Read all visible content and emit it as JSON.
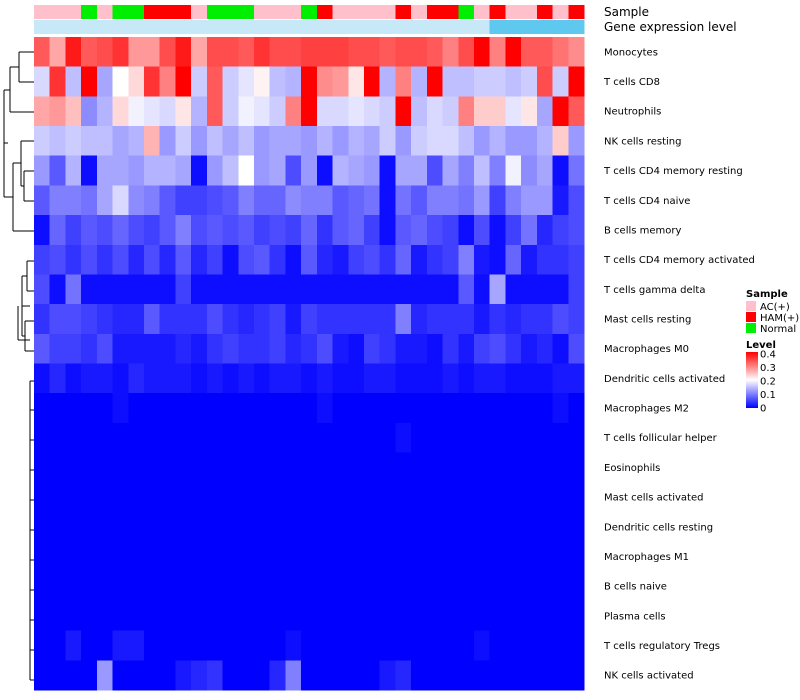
{
  "chart_data": {
    "type": "heatmap",
    "annotation_tracks": [
      {
        "name": "Sample",
        "values": [
          "AC(+)",
          "AC(+)",
          "AC(+)",
          "Normal",
          "AC(+)",
          "Normal",
          "Normal",
          "HAM(+)",
          "HAM(+)",
          "HAM(+)",
          "AC(+)",
          "Normal",
          "Normal",
          "Normal",
          "AC(+)",
          "AC(+)",
          "AC(+)",
          "Normal",
          "HAM(+)",
          "AC(+)",
          "AC(+)",
          "AC(+)",
          "AC(+)",
          "HAM(+)",
          "AC(+)",
          "HAM(+)",
          "HAM(+)",
          "Normal",
          "AC(+)",
          "HAM(+)",
          "AC(+)",
          "AC(+)",
          "HAM(+)",
          "AC(+)",
          "HAM(+)"
        ]
      },
      {
        "name": "Gene expression level",
        "values": [
          "low",
          "low",
          "low",
          "low",
          "low",
          "low",
          "low",
          "low",
          "low",
          "low",
          "low",
          "low",
          "low",
          "low",
          "low",
          "low",
          "low",
          "low",
          "low",
          "low",
          "low",
          "low",
          "low",
          "low",
          "low",
          "low",
          "low",
          "low",
          "low",
          "high",
          "high",
          "high",
          "high",
          "high",
          "high"
        ]
      }
    ],
    "sample_legend": {
      "title": "Sample",
      "entries": [
        {
          "label": "AC(+)",
          "color": "#ffc0cb"
        },
        {
          "label": "HAM(+)",
          "color": "#ff0000"
        },
        {
          "label": "Normal",
          "color": "#00ee00"
        }
      ]
    },
    "level_legend": {
      "title": "Level",
      "ticks": [
        "0.4",
        "0.3",
        "0.2",
        "0.1",
        "0"
      ],
      "tick_values": [
        0.4,
        0.3,
        0.2,
        0.1,
        0
      ],
      "range": [
        0,
        0.4
      ],
      "colors": {
        "low": "#0000ff",
        "mid": "#ffffff",
        "high": "#ff0000"
      }
    },
    "expression_track_colors": {
      "low": "#c6e8f7",
      "high": "#5ec8ee"
    },
    "rows": [
      "Monocytes",
      "T cells CD8",
      "Neutrophils",
      "NK cells resting",
      "T cells CD4 memory resting",
      "T cells CD4 naive",
      "B cells memory",
      "T cells CD4 memory activated",
      "T cells gamma delta",
      "Mast cells resting",
      "Macrophages M0",
      "Dendritic cells activated",
      "Macrophages M2",
      "T cells follicular helper",
      "Eosinophils",
      "Mast cells activated",
      "Dendritic cells resting",
      "Macrophages M1",
      "B cells naive",
      "Plasma cells",
      "T cells regulatory  Tregs",
      "NK cells activated"
    ],
    "values": [
      [
        0.33,
        0.27,
        0.38,
        0.33,
        0.34,
        0.36,
        0.28,
        0.28,
        0.34,
        0.38,
        0.27,
        0.34,
        0.34,
        0.33,
        0.36,
        0.34,
        0.34,
        0.35,
        0.35,
        0.35,
        0.34,
        0.34,
        0.33,
        0.34,
        0.34,
        0.33,
        0.3,
        0.34,
        0.4,
        0.3,
        0.4,
        0.33,
        0.33,
        0.31,
        0.29
      ],
      [
        0.17,
        0.36,
        0.15,
        0.4,
        0.13,
        0.2,
        0.23,
        0.36,
        0.3,
        0.4,
        0.16,
        0.33,
        0.16,
        0.18,
        0.21,
        0.15,
        0.14,
        0.4,
        0.29,
        0.28,
        0.22,
        0.4,
        0.14,
        0.3,
        0.14,
        0.4,
        0.15,
        0.15,
        0.16,
        0.16,
        0.15,
        0.16,
        0.34,
        0.16,
        0.4
      ],
      [
        0.27,
        0.28,
        0.25,
        0.11,
        0.14,
        0.23,
        0.19,
        0.18,
        0.17,
        0.22,
        0.14,
        0.33,
        0.16,
        0.19,
        0.18,
        0.16,
        0.3,
        0.4,
        0.17,
        0.17,
        0.18,
        0.17,
        0.16,
        0.4,
        0.15,
        0.17,
        0.16,
        0.3,
        0.24,
        0.24,
        0.18,
        0.22,
        0.13,
        0.4,
        0.33
      ],
      [
        0.16,
        0.15,
        0.16,
        0.15,
        0.15,
        0.13,
        0.14,
        0.26,
        0.12,
        0.16,
        0.12,
        0.15,
        0.13,
        0.15,
        0.12,
        0.13,
        0.13,
        0.12,
        0.14,
        0.12,
        0.14,
        0.13,
        0.16,
        0.12,
        0.16,
        0.17,
        0.17,
        0.15,
        0.12,
        0.14,
        0.12,
        0.12,
        0.14,
        0.24,
        0.12
      ],
      [
        0.12,
        0.07,
        0.14,
        0.01,
        0.13,
        0.13,
        0.12,
        0.14,
        0.14,
        0.13,
        0.01,
        0.12,
        0.15,
        0.2,
        0.12,
        0.13,
        0.06,
        0.12,
        0.01,
        0.14,
        0.13,
        0.12,
        0.01,
        0.13,
        0.13,
        0.06,
        0.13,
        0.1,
        0.15,
        0.1,
        0.19,
        0.11,
        0.13,
        0.01,
        0.09
      ],
      [
        0.07,
        0.1,
        0.1,
        0.09,
        0.13,
        0.17,
        0.11,
        0.1,
        0.07,
        0.05,
        0.05,
        0.06,
        0.07,
        0.1,
        0.08,
        0.08,
        0.11,
        0.1,
        0.1,
        0.07,
        0.08,
        0.09,
        0.01,
        0.09,
        0.07,
        0.1,
        0.1,
        0.09,
        0.12,
        0.05,
        0.1,
        0.12,
        0.12,
        0.02,
        0.06
      ],
      [
        0.01,
        0.08,
        0.05,
        0.07,
        0.06,
        0.08,
        0.06,
        0.05,
        0.07,
        0.1,
        0.06,
        0.07,
        0.06,
        0.07,
        0.05,
        0.06,
        0.05,
        0.08,
        0.04,
        0.07,
        0.08,
        0.05,
        0.01,
        0.07,
        0.08,
        0.06,
        0.05,
        0.01,
        0.06,
        0.01,
        0.05,
        0.09,
        0.03,
        0.05,
        0.06
      ],
      [
        0.05,
        0.06,
        0.04,
        0.06,
        0.04,
        0.06,
        0.03,
        0.06,
        0.03,
        0.07,
        0.03,
        0.05,
        0.01,
        0.06,
        0.07,
        0.04,
        0.01,
        0.07,
        0.03,
        0.02,
        0.05,
        0.06,
        0.04,
        0.08,
        0.02,
        0.04,
        0.05,
        0.1,
        0.02,
        0.01,
        0.08,
        0.02,
        0.04,
        0.04,
        0.05
      ],
      [
        0.06,
        0.01,
        0.09,
        0.01,
        0.01,
        0.01,
        0.01,
        0.01,
        0.01,
        0.05,
        0.01,
        0.01,
        0.01,
        0.01,
        0.01,
        0.01,
        0.01,
        0.01,
        0.01,
        0.01,
        0.01,
        0.01,
        0.01,
        0.01,
        0.01,
        0.01,
        0.01,
        0.07,
        0.01,
        0.13,
        0.01,
        0.01,
        0.01,
        0.01,
        0.05
      ],
      [
        0.04,
        0.06,
        0.06,
        0.05,
        0.04,
        0.03,
        0.03,
        0.07,
        0.04,
        0.04,
        0.04,
        0.06,
        0.04,
        0.03,
        0.04,
        0.05,
        0.02,
        0.05,
        0.04,
        0.04,
        0.04,
        0.04,
        0.04,
        0.1,
        0.03,
        0.04,
        0.04,
        0.04,
        0.02,
        0.04,
        0.03,
        0.04,
        0.04,
        0.06,
        0.05
      ],
      [
        0.07,
        0.05,
        0.05,
        0.04,
        0.06,
        0.02,
        0.02,
        0.02,
        0.02,
        0.03,
        0.02,
        0.04,
        0.05,
        0.04,
        0.04,
        0.05,
        0.03,
        0.04,
        0.06,
        0.02,
        0.01,
        0.05,
        0.04,
        0.02,
        0.02,
        0.01,
        0.04,
        0.02,
        0.05,
        0.06,
        0.04,
        0.02,
        0.03,
        0.01,
        0.06
      ],
      [
        0.01,
        0.03,
        0.01,
        0.02,
        0.02,
        0.01,
        0.03,
        0.02,
        0.02,
        0.02,
        0.01,
        0.02,
        0.01,
        0.02,
        0.01,
        0.02,
        0.02,
        0.01,
        0.02,
        0.01,
        0.01,
        0.02,
        0.02,
        0.01,
        0.01,
        0.01,
        0.02,
        0.01,
        0.02,
        0.02,
        0.01,
        0.01,
        0.01,
        0.02,
        0.02
      ],
      [
        0.0,
        0.0,
        0.0,
        0.0,
        0.0,
        0.01,
        0.0,
        0.0,
        0.0,
        0.0,
        0.0,
        0.0,
        0.0,
        0.0,
        0.0,
        0.0,
        0.0,
        0.0,
        0.01,
        0.0,
        0.0,
        0.0,
        0.0,
        0.0,
        0.0,
        0.0,
        0.0,
        0.0,
        0.0,
        0.0,
        0.0,
        0.0,
        0.0,
        0.01,
        0.0
      ],
      [
        0.0,
        0.0,
        0.0,
        0.0,
        0.0,
        0.0,
        0.0,
        0.0,
        0.0,
        0.0,
        0.0,
        0.0,
        0.0,
        0.0,
        0.0,
        0.0,
        0.0,
        0.0,
        0.0,
        0.0,
        0.0,
        0.0,
        0.0,
        0.01,
        0.0,
        0.0,
        0.0,
        0.0,
        0.0,
        0.0,
        0.0,
        0.0,
        0.0,
        0.0,
        0.0
      ],
      [
        0.0,
        0.0,
        0.0,
        0.0,
        0.0,
        0.0,
        0.0,
        0.0,
        0.0,
        0.0,
        0.0,
        0.0,
        0.0,
        0.0,
        0.0,
        0.0,
        0.0,
        0.0,
        0.0,
        0.0,
        0.0,
        0.0,
        0.0,
        0.0,
        0.0,
        0.0,
        0.0,
        0.0,
        0.0,
        0.0,
        0.0,
        0.0,
        0.0,
        0.0,
        0.0
      ],
      [
        0.0,
        0.0,
        0.0,
        0.0,
        0.0,
        0.0,
        0.0,
        0.0,
        0.0,
        0.0,
        0.0,
        0.0,
        0.0,
        0.0,
        0.0,
        0.0,
        0.0,
        0.0,
        0.0,
        0.0,
        0.0,
        0.0,
        0.0,
        0.0,
        0.0,
        0.0,
        0.0,
        0.0,
        0.0,
        0.0,
        0.0,
        0.0,
        0.0,
        0.0,
        0.0
      ],
      [
        0.0,
        0.0,
        0.0,
        0.0,
        0.0,
        0.0,
        0.0,
        0.0,
        0.0,
        0.0,
        0.0,
        0.0,
        0.0,
        0.0,
        0.0,
        0.0,
        0.0,
        0.0,
        0.0,
        0.0,
        0.0,
        0.0,
        0.0,
        0.0,
        0.0,
        0.0,
        0.0,
        0.0,
        0.0,
        0.0,
        0.0,
        0.0,
        0.0,
        0.0,
        0.0
      ],
      [
        0.0,
        0.0,
        0.0,
        0.0,
        0.0,
        0.0,
        0.0,
        0.0,
        0.0,
        0.0,
        0.0,
        0.0,
        0.0,
        0.0,
        0.0,
        0.0,
        0.0,
        0.0,
        0.0,
        0.0,
        0.0,
        0.0,
        0.0,
        0.0,
        0.0,
        0.0,
        0.0,
        0.0,
        0.0,
        0.0,
        0.0,
        0.0,
        0.0,
        0.0,
        0.0
      ],
      [
        0.0,
        0.0,
        0.0,
        0.0,
        0.0,
        0.0,
        0.0,
        0.0,
        0.0,
        0.0,
        0.0,
        0.0,
        0.0,
        0.0,
        0.0,
        0.0,
        0.0,
        0.0,
        0.0,
        0.0,
        0.0,
        0.0,
        0.0,
        0.0,
        0.0,
        0.0,
        0.0,
        0.0,
        0.0,
        0.0,
        0.0,
        0.0,
        0.0,
        0.0,
        0.0
      ],
      [
        0.0,
        0.0,
        0.0,
        0.0,
        0.0,
        0.0,
        0.0,
        0.0,
        0.0,
        0.0,
        0.0,
        0.0,
        0.0,
        0.0,
        0.0,
        0.0,
        0.0,
        0.0,
        0.0,
        0.0,
        0.0,
        0.0,
        0.0,
        0.0,
        0.0,
        0.0,
        0.0,
        0.0,
        0.0,
        0.0,
        0.0,
        0.0,
        0.0,
        0.0,
        0.0
      ],
      [
        0.0,
        0.0,
        0.02,
        0.0,
        0.0,
        0.02,
        0.02,
        0.0,
        0.0,
        0.0,
        0.0,
        0.0,
        0.0,
        0.0,
        0.0,
        0.0,
        0.01,
        0.0,
        0.0,
        0.0,
        0.0,
        0.0,
        0.0,
        0.0,
        0.0,
        0.0,
        0.0,
        0.0,
        0.01,
        0.0,
        0.0,
        0.0,
        0.0,
        0.0,
        0.0
      ],
      [
        0.0,
        0.0,
        0.0,
        0.0,
        0.12,
        0.0,
        0.0,
        0.0,
        0.0,
        0.02,
        0.03,
        0.04,
        0.0,
        0.0,
        0.0,
        0.03,
        0.1,
        0.0,
        0.0,
        0.0,
        0.0,
        0.0,
        0.02,
        0.03,
        0.0,
        0.0,
        0.0,
        0.0,
        0.0,
        0.0,
        0.0,
        0.0,
        0.0,
        0.0,
        0.0
      ]
    ]
  }
}
